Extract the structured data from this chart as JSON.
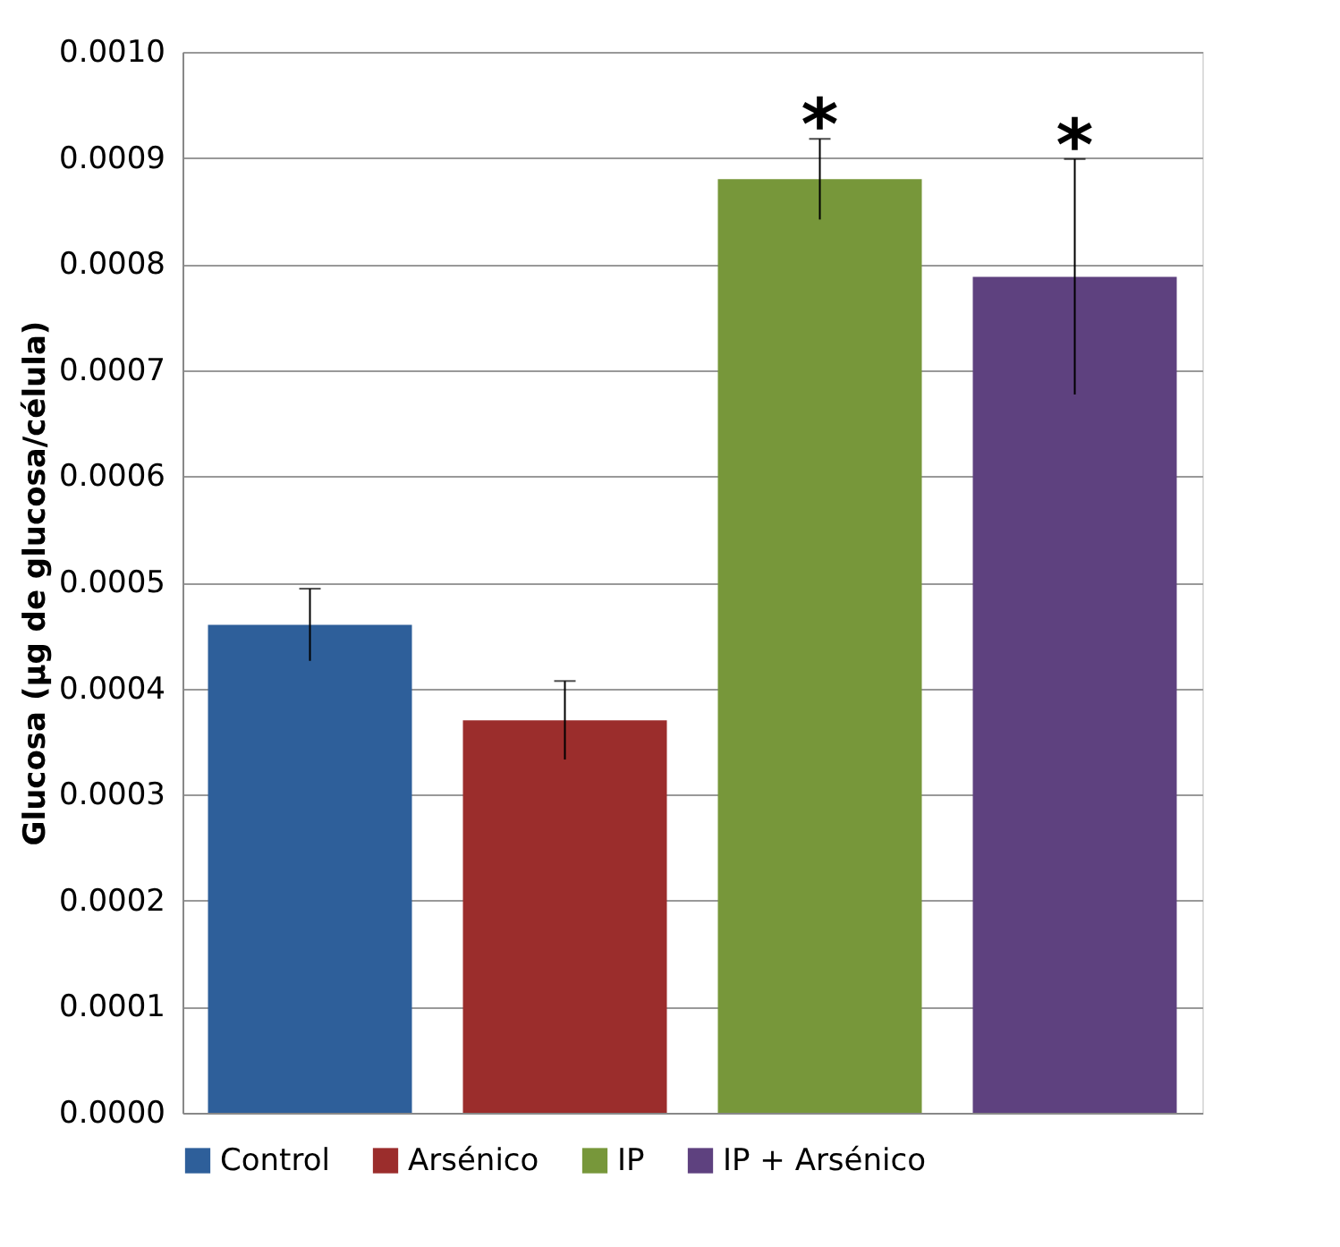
{
  "chart_data": {
    "type": "bar",
    "ylabel": "Glucosa (µg de glucosa/célula)",
    "categories": [
      null,
      null,
      null,
      null
    ],
    "series": [
      {
        "name": "Control",
        "color": "#2e5f9a",
        "values": [
          0.00046,
          null,
          null,
          null
        ],
        "errors": [
          3.4e-05,
          null,
          null,
          null
        ]
      },
      {
        "name": "Arsénico",
        "color": "#9b2d2c",
        "values": [
          null,
          0.00037,
          null,
          null
        ],
        "errors": [
          null,
          3.7e-05,
          null,
          null
        ]
      },
      {
        "name": "IP",
        "color": "#77973a",
        "values": [
          null,
          null,
          0.00088,
          null
        ],
        "errors": [
          null,
          null,
          3.8e-05,
          null
        ]
      },
      {
        "name": "IP + Arsénico",
        "color": "#5e417f",
        "values": [
          null,
          null,
          null,
          0.000788
        ],
        "errors": [
          null,
          null,
          null,
          0.000111
        ]
      }
    ],
    "ylim": [
      0,
      0.001
    ],
    "yticks": [
      {
        "value": 0,
        "label": "0.0000"
      },
      {
        "value": 0.0001,
        "label": "0.0001"
      },
      {
        "value": 0.0002,
        "label": "0.0002"
      },
      {
        "value": 0.0003,
        "label": "0.0003"
      },
      {
        "value": 0.0004,
        "label": "0.0004"
      },
      {
        "value": 0.0005,
        "label": "0.0005"
      },
      {
        "value": 0.0006,
        "label": "0.0006"
      },
      {
        "value": 0.0007,
        "label": "0.0007"
      },
      {
        "value": 0.0008,
        "label": "0.0008"
      },
      {
        "value": 0.0009,
        "label": "0.0009"
      },
      {
        "value": 0.001,
        "label": "0.0010"
      }
    ],
    "annotations": [
      "*",
      "*"
    ],
    "grid": "y",
    "legend": "bottom"
  }
}
